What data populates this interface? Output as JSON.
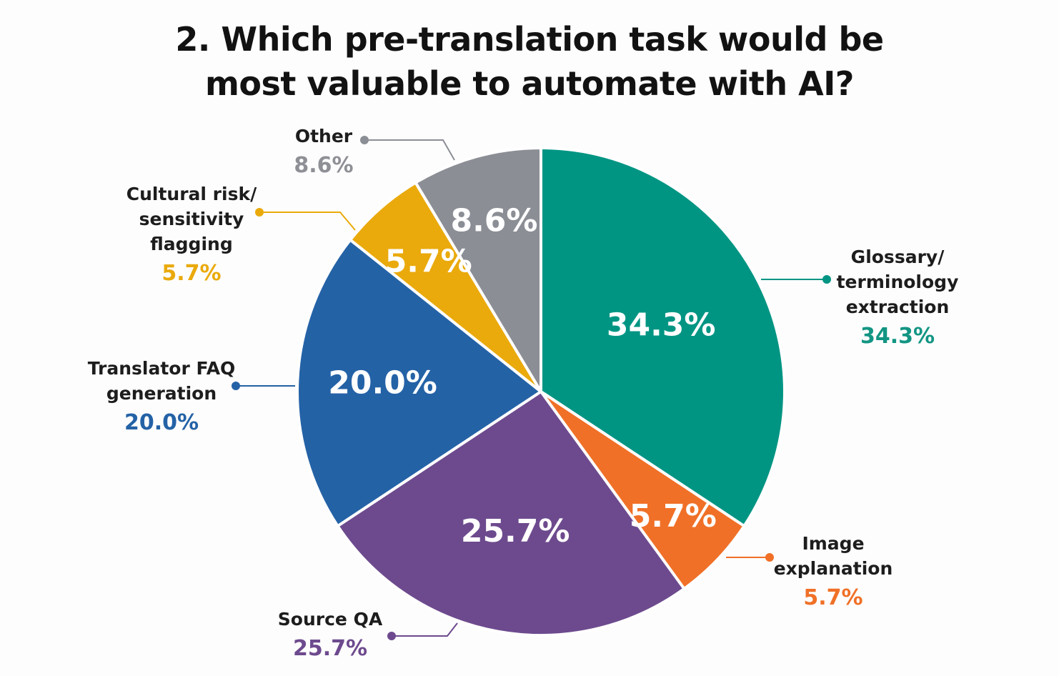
{
  "title": {
    "line1": "2. Which pre-translation task would be",
    "line2": "most valuable to automate with AI?"
  },
  "chart_data": {
    "type": "pie",
    "title": "2. Which pre-translation task would be most valuable to automate with AI?",
    "legend": "callouts",
    "categories": [
      "Glossary/ terminology extraction",
      "Image explanation",
      "Source QA",
      "Translator FAQ generation",
      "Cultural risk/ sensitivity flagging",
      "Other"
    ],
    "values": [
      34.3,
      5.7,
      25.7,
      20.0,
      5.7,
      8.6
    ],
    "slice_labels": [
      "34.3%",
      "5.7%",
      "25.7%",
      "20.0%",
      "5.7%",
      "8.6%"
    ],
    "colors": [
      "#009583",
      "#f07027",
      "#6d4a8e",
      "#2462a6",
      "#eaaa0c",
      "#8b8e95"
    ],
    "value_colors": [
      "#129583",
      "#f07027",
      "#6d4a8e",
      "#2462a6",
      "#eaaa0c",
      "#8e9096"
    ],
    "callouts": [
      {
        "lines": [
          "Glossary/",
          "terminology",
          "extraction"
        ],
        "value": "34.3%"
      },
      {
        "lines": [
          "Image",
          "explanation"
        ],
        "value": "5.7%"
      },
      {
        "lines": [
          "Source QA"
        ],
        "value": "25.7%"
      },
      {
        "lines": [
          "Translator FAQ",
          "generation"
        ],
        "value": "20.0%"
      },
      {
        "lines": [
          "Cultural risk/",
          "sensitivity",
          "flagging"
        ],
        "value": "5.7%"
      },
      {
        "lines": [
          "Other"
        ],
        "value": "8.6%"
      }
    ]
  }
}
